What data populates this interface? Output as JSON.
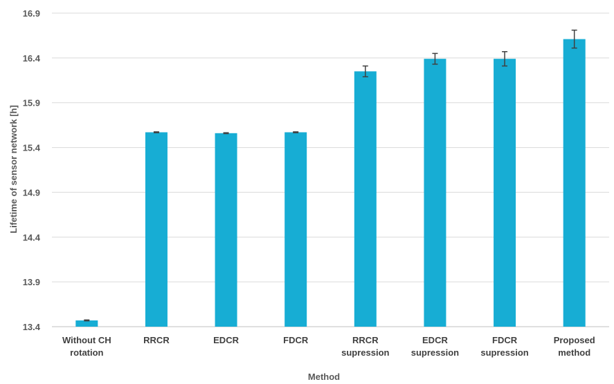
{
  "chart_data": {
    "type": "bar",
    "title": "",
    "xlabel": "Method",
    "ylabel": "Lifetime of  sensor network [h]",
    "ylim": [
      13.4,
      16.9
    ],
    "yticks": [
      "13.4",
      "13.9",
      "14.4",
      "14.9",
      "15.4",
      "15.9",
      "16.4",
      "16.9"
    ],
    "grid": true,
    "bar_color": "#17ADD4",
    "error_color": "#404040",
    "categories": [
      [
        "Without CH",
        "rotation"
      ],
      [
        "RRCR"
      ],
      [
        "EDCR"
      ],
      [
        "FDCR"
      ],
      [
        "RRCR",
        "supression"
      ],
      [
        "EDCR",
        "supression"
      ],
      [
        "FDCR",
        "supression"
      ],
      [
        "Proposed",
        "method"
      ]
    ],
    "values": [
      13.47,
      15.57,
      15.56,
      15.57,
      16.25,
      16.39,
      16.39,
      16.61
    ],
    "errors": [
      0.005,
      0.005,
      0.005,
      0.005,
      0.06,
      0.06,
      0.08,
      0.1
    ]
  }
}
